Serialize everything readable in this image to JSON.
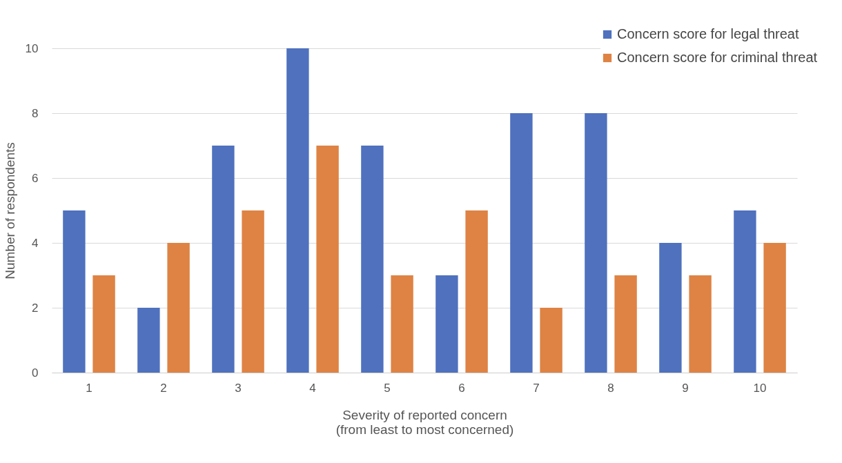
{
  "chart_data": {
    "type": "bar",
    "xlabel": "Severity of reported concern\n(from least to most concerned)",
    "ylabel": "Number of respondents",
    "categories": [
      "1",
      "2",
      "3",
      "4",
      "5",
      "6",
      "7",
      "8",
      "9",
      "10"
    ],
    "series": [
      {
        "name": "Concern score for legal threat",
        "color": "#4f71be",
        "values": [
          5,
          2,
          7,
          10,
          7,
          3,
          8,
          8,
          4,
          5
        ]
      },
      {
        "name": "Concern score for criminal threat",
        "color": "#de8344",
        "values": [
          3,
          4,
          5,
          7,
          3,
          5,
          2,
          3,
          3,
          4
        ]
      }
    ],
    "ylim": [
      0,
      10
    ],
    "yticks": [
      0,
      2,
      4,
      6,
      8,
      10
    ],
    "grid": "y",
    "legend": "top right"
  }
}
